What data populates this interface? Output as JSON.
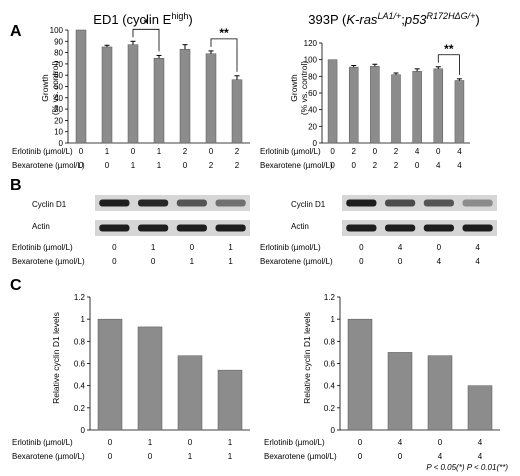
{
  "panels": [
    "A",
    "B",
    "C"
  ],
  "row_labels": {
    "erlotinib": "Erlotinib (µmol/L)",
    "bexarotene": "Bexarotene (µmol/L)"
  },
  "footnote": "P < 0.05(*) P < 0.01(**)",
  "colors": {
    "bar": "#8c8c8c",
    "band": "#1e1e1e",
    "blot_bg": "#d6d6d6"
  },
  "panel_a": {
    "ylabel": [
      "Growth",
      "(% vs. control)"
    ],
    "left": {
      "title": {
        "main": "ED1 (cyclin E",
        "sup": "high",
        "end": ")"
      },
      "erlotinib": [
        "0",
        "1",
        "0",
        "1",
        "2",
        "0",
        "2"
      ],
      "bexarotene": [
        "0",
        "0",
        "1",
        "1",
        "0",
        "2",
        "2"
      ],
      "significance": [
        {
          "from": 2,
          "to": 3,
          "label": "*"
        },
        {
          "from": 5,
          "to": 6,
          "label": "**"
        }
      ]
    },
    "right": {
      "title": {
        "pre": "393P (",
        "gene1": "K-ras",
        "sup1": "LA1/+",
        "sep": ";",
        "gene2": "p53",
        "sup2": "R172HΔG/+",
        "end": ")"
      },
      "erlotinib": [
        "0",
        "2",
        "0",
        "2",
        "4",
        "0",
        "4"
      ],
      "bexarotene": [
        "0",
        "0",
        "2",
        "2",
        "0",
        "4",
        "4"
      ],
      "significance": [
        {
          "from": 5,
          "to": 6,
          "label": "**"
        }
      ]
    }
  },
  "panel_b": {
    "left": {
      "rows": [
        "Cyclin D1",
        "Actin"
      ],
      "erlotinib": [
        "0",
        "1",
        "0",
        "1"
      ],
      "bexarotene": [
        "0",
        "0",
        "1",
        "1"
      ],
      "band_intensity": {
        "cyclin": [
          1.0,
          0.95,
          0.7,
          0.55
        ],
        "actin": [
          1,
          1,
          1,
          1
        ]
      }
    },
    "right": {
      "rows": [
        "Cyclin D1",
        "Actin"
      ],
      "erlotinib": [
        "0",
        "4",
        "0",
        "4"
      ],
      "bexarotene": [
        "0",
        "0",
        "4",
        "4"
      ],
      "band_intensity": {
        "cyclin": [
          1.0,
          0.75,
          0.7,
          0.4
        ],
        "actin": [
          1,
          1,
          1,
          1
        ]
      }
    }
  },
  "panel_c": {
    "ylabel": [
      "Relative cyclin D1 levels"
    ],
    "left": {
      "erlotinib": [
        "0",
        "1",
        "0",
        "1"
      ],
      "bexarotene": [
        "0",
        "0",
        "1",
        "1"
      ]
    },
    "right": {
      "erlotinib": [
        "0",
        "4",
        "0",
        "4"
      ],
      "bexarotene": [
        "0",
        "0",
        "4",
        "4"
      ]
    }
  },
  "chart_data": [
    {
      "type": "bar",
      "panel": "A-left",
      "categories": [
        "1",
        "2",
        "3",
        "4",
        "5",
        "6",
        "7"
      ],
      "values": [
        100,
        85,
        87,
        75,
        83,
        79,
        56
      ],
      "errors": [
        0,
        1.5,
        3,
        2.5,
        4,
        2.5,
        3.5
      ],
      "ylim": [
        0,
        100
      ],
      "yticks": [
        0,
        10,
        20,
        30,
        40,
        50,
        60,
        70,
        80,
        90,
        100
      ]
    },
    {
      "type": "bar",
      "panel": "A-right",
      "categories": [
        "1",
        "2",
        "3",
        "4",
        "5",
        "6",
        "7"
      ],
      "values": [
        100,
        91,
        92,
        82,
        86,
        89,
        75
      ],
      "errors": [
        0,
        2,
        2.5,
        2,
        3,
        2.5,
        2
      ],
      "ylim": [
        0,
        120
      ],
      "yticks": [
        0,
        20,
        40,
        60,
        80,
        100,
        120
      ]
    },
    {
      "type": "bar",
      "panel": "C-left",
      "categories": [
        "1",
        "2",
        "3",
        "4"
      ],
      "values": [
        1.0,
        0.93,
        0.67,
        0.54
      ],
      "ylim": [
        0,
        1.2
      ],
      "yticks": [
        "0",
        "0.2",
        "0.4",
        "0.6",
        "0.8",
        "1",
        "1.2"
      ]
    },
    {
      "type": "bar",
      "panel": "C-right",
      "categories": [
        "1",
        "2",
        "3",
        "4"
      ],
      "values": [
        1.0,
        0.7,
        0.67,
        0.4
      ],
      "ylim": [
        0,
        1.2
      ],
      "yticks": [
        "0",
        "0.2",
        "0.4",
        "0.6",
        "0.8",
        "1",
        "1.2"
      ]
    }
  ]
}
